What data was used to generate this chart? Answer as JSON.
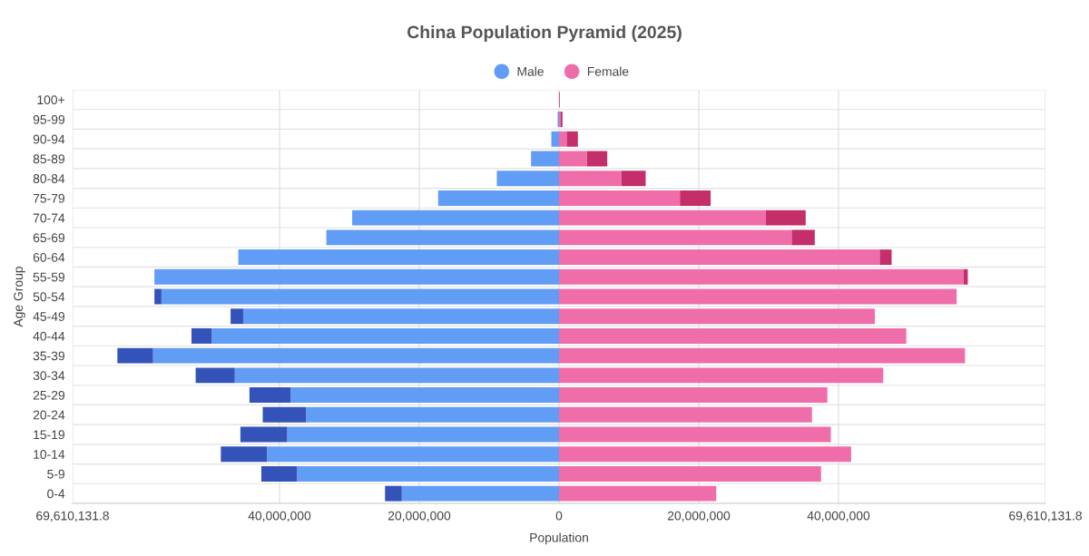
{
  "chart_data": {
    "type": "bar",
    "orientation": "horizontal",
    "stacked": true,
    "title": "China Population Pyramid (2025)",
    "xlabel": "Population",
    "ylabel": "Age Group",
    "categories": [
      "100+",
      "95-99",
      "90-94",
      "85-89",
      "80-84",
      "75-79",
      "70-74",
      "65-69",
      "60-64",
      "55-59",
      "50-54",
      "45-49",
      "40-44",
      "35-39",
      "30-34",
      "25-29",
      "20-24",
      "15-19",
      "10-14",
      "5-9",
      "0-4"
    ],
    "series": [
      {
        "name": "Male",
        "color": "#619cf5",
        "values": [
          0,
          -200000,
          -1100000,
          -4000000,
          -8900000,
          -17300000,
          -29600000,
          -33300000,
          -45900000,
          -57900000,
          -56900000,
          -45200000,
          -49700000,
          -58100000,
          -46400000,
          -38400000,
          -36200000,
          -38900000,
          -41800000,
          -37500000,
          -22500000
        ]
      },
      {
        "color": "#3353b8",
        "values": [
          0,
          0,
          0,
          0,
          0,
          0,
          0,
          0,
          0,
          0,
          -1000000,
          -1800000,
          -2900000,
          -5100000,
          -5600000,
          -5900000,
          -6200000,
          -6700000,
          -6600000,
          -5100000,
          -2400000
        ]
      },
      {
        "name": "Female",
        "color": "#ef6eaa",
        "values": [
          0,
          200000,
          1100000,
          4000000,
          8900000,
          17300000,
          29600000,
          33300000,
          45900000,
          57900000,
          56900000,
          45200000,
          49700000,
          58100000,
          46400000,
          38400000,
          36200000,
          38900000,
          41800000,
          37500000,
          22500000
        ]
      },
      {
        "color": "#c42e6b",
        "values": [
          100000,
          300000,
          1600000,
          2900000,
          3500000,
          4400000,
          5700000,
          3300000,
          1700000,
          600000,
          0,
          0,
          0,
          0,
          0,
          0,
          0,
          0,
          0,
          0,
          0
        ]
      }
    ],
    "xlim": [
      -69610131.8,
      69610131.8
    ],
    "xticks": [
      {
        "value": -69610131.8,
        "label": "69,610,131.8"
      },
      {
        "value": -40000000,
        "label": "40,000,000"
      },
      {
        "value": -20000000,
        "label": "20,000,000"
      },
      0,
      {
        "value": 20000000,
        "label": "20,000,000"
      },
      {
        "value": 40000000,
        "label": "40,000,000"
      },
      {
        "value": 69610131.8,
        "label": "69,610,131.8"
      }
    ],
    "grid": true,
    "legend": "top"
  }
}
